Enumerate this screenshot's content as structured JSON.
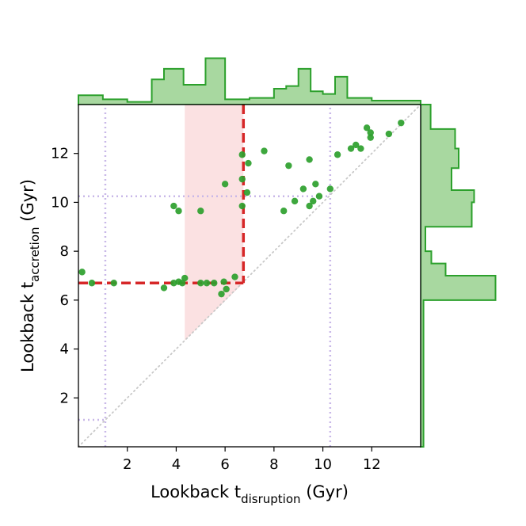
{
  "chart_data": {
    "type": "scatter",
    "xlabel": {
      "main": "Lookback t",
      "sub": "disruption",
      "unit": " (Gyr)"
    },
    "ylabel": {
      "main": "Lookback t",
      "sub": "accretion",
      "unit": " (Gyr)"
    },
    "xlim": [
      0,
      14
    ],
    "ylim": [
      0,
      14
    ],
    "xticks": [
      2,
      4,
      6,
      8,
      10,
      12
    ],
    "yticks": [
      2,
      4,
      6,
      8,
      10,
      12
    ],
    "colors": {
      "points": "#2ca02c",
      "hist_fill": "#a8d8a0",
      "hist_edge": "#2ca02c",
      "highlight_line": "#d62728",
      "highlight_fill": "#f9d7d8",
      "reference_lines": "#c9b8e8",
      "diagonal": "#c8c8c8"
    },
    "points": [
      [
        0.15,
        7.15
      ],
      [
        0.55,
        6.7
      ],
      [
        1.45,
        6.7
      ],
      [
        3.5,
        6.5
      ],
      [
        3.9,
        6.7
      ],
      [
        4.1,
        6.75
      ],
      [
        4.25,
        6.7
      ],
      [
        4.35,
        6.9
      ],
      [
        5.0,
        6.7
      ],
      [
        5.25,
        6.7
      ],
      [
        5.55,
        6.7
      ],
      [
        5.85,
        6.25
      ],
      [
        6.05,
        6.45
      ],
      [
        5.95,
        6.75
      ],
      [
        6.4,
        6.95
      ],
      [
        3.9,
        9.85
      ],
      [
        4.1,
        9.65
      ],
      [
        5.0,
        9.65
      ],
      [
        6.0,
        10.75
      ],
      [
        6.7,
        9.85
      ],
      [
        6.7,
        11.95
      ],
      [
        6.7,
        10.95
      ],
      [
        6.9,
        10.4
      ],
      [
        6.95,
        11.6
      ],
      [
        7.6,
        12.1
      ],
      [
        8.4,
        9.65
      ],
      [
        8.6,
        11.5
      ],
      [
        8.85,
        10.05
      ],
      [
        9.2,
        10.55
      ],
      [
        9.45,
        11.75
      ],
      [
        9.45,
        9.85
      ],
      [
        9.6,
        10.05
      ],
      [
        9.7,
        10.75
      ],
      [
        9.85,
        10.25
      ],
      [
        10.3,
        10.55
      ],
      [
        10.6,
        11.95
      ],
      [
        11.15,
        12.2
      ],
      [
        11.35,
        12.35
      ],
      [
        11.55,
        12.2
      ],
      [
        11.8,
        13.05
      ],
      [
        11.95,
        12.85
      ],
      [
        11.95,
        12.65
      ],
      [
        12.7,
        12.8
      ],
      [
        13.2,
        13.25
      ]
    ],
    "reference_lines": {
      "x": [
        1.1,
        10.3
      ],
      "y": [
        1.1,
        10.25
      ]
    },
    "highlight": {
      "vertical_at_x": 6.75,
      "horizontal_at_y": 6.7,
      "shaded_region": [
        [
          4.35,
          4.35
        ],
        [
          4.35,
          14
        ],
        [
          6.75,
          14
        ],
        [
          6.75,
          6.7
        ]
      ]
    },
    "top_histogram": {
      "bin_edges": [
        0,
        1,
        2,
        3,
        3.5,
        4.3,
        5.2,
        6,
        7,
        8,
        8.5,
        9,
        9.5,
        10,
        10.5,
        11,
        12,
        14
      ],
      "counts": [
        0.7,
        0.4,
        0.2,
        1.9,
        2.7,
        1.5,
        3.5,
        0.4,
        0.5,
        1.2,
        1.4,
        2.7,
        1.0,
        0.8,
        2.1,
        0.5,
        0.3
      ]
    },
    "right_histogram": {
      "bin_edges": [
        0,
        6,
        7,
        7.5,
        8,
        9,
        10,
        10.5,
        11.4,
        12.2,
        13,
        14
      ],
      "counts": [
        0.12,
        3.15,
        1.05,
        0.45,
        0.2,
        2.15,
        2.25,
        1.3,
        1.6,
        1.45,
        0.42
      ]
    }
  }
}
